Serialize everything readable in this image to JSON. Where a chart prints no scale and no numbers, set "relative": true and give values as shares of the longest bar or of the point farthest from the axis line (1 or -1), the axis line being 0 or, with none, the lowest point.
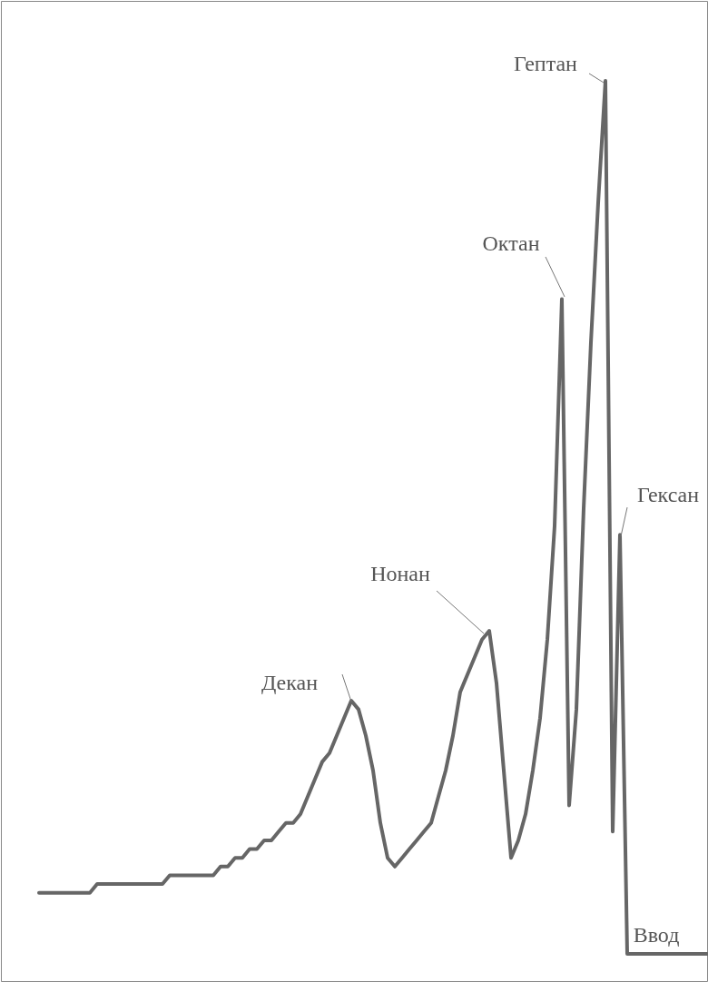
{
  "chart_data": {
    "type": "line",
    "relative": true,
    "categories": [
      null,
      null,
      null,
      null,
      null,
      null,
      null,
      null,
      null,
      null,
      null,
      null,
      null,
      null,
      null,
      null,
      null,
      null,
      null,
      null,
      null,
      null,
      null,
      null,
      null,
      null,
      null,
      null,
      null,
      null,
      null,
      null,
      null,
      null,
      null,
      null,
      null,
      null,
      null,
      null,
      null,
      null,
      null,
      null,
      null,
      null,
      null,
      null,
      null,
      null,
      null,
      null,
      null,
      null,
      null,
      null,
      null,
      null,
      null,
      null,
      null,
      null,
      null,
      null,
      null,
      null,
      null,
      null,
      null,
      null,
      null,
      null,
      null,
      null,
      null,
      null,
      null,
      null,
      null,
      null,
      null,
      null,
      null,
      null,
      null,
      null,
      null,
      null,
      null,
      null,
      null,
      null,
      null
    ],
    "series": [
      {
        "color": "#666666",
        "values": [
          0.07,
          0.07,
          0.07,
          0.07,
          0.07,
          0.07,
          0.07,
          0.07,
          0.08,
          0.08,
          0.08,
          0.08,
          0.08,
          0.08,
          0.08,
          0.08,
          0.08,
          0.08,
          0.09,
          0.09,
          0.09,
          0.09,
          0.09,
          0.09,
          0.09,
          0.1,
          0.1,
          0.11,
          0.11,
          0.12,
          0.12,
          0.13,
          0.13,
          0.14,
          0.15,
          0.15,
          0.16,
          0.18,
          0.2,
          0.22,
          0.23,
          0.25,
          0.27,
          0.29,
          0.28,
          0.25,
          0.21,
          0.15,
          0.11,
          0.1,
          0.11,
          0.12,
          0.13,
          0.14,
          0.15,
          0.18,
          0.21,
          0.25,
          0.3,
          0.32,
          0.34,
          0.36,
          0.37,
          0.31,
          0.21,
          0.11,
          0.13,
          0.16,
          0.21,
          0.27,
          0.36,
          0.49,
          0.75,
          0.17,
          0.28,
          0.51,
          0.7,
          0.86,
          1,
          0.14,
          0.48,
          0,
          0,
          0,
          0,
          0,
          0,
          0,
          0,
          0,
          0,
          0,
          0
        ]
      }
    ],
    "annotations": [
      "Гептан",
      "Октан",
      "Гексан",
      "Нонан",
      "Декан",
      "Ввод"
    ],
    "marker": "none",
    "line_style": "solid"
  }
}
